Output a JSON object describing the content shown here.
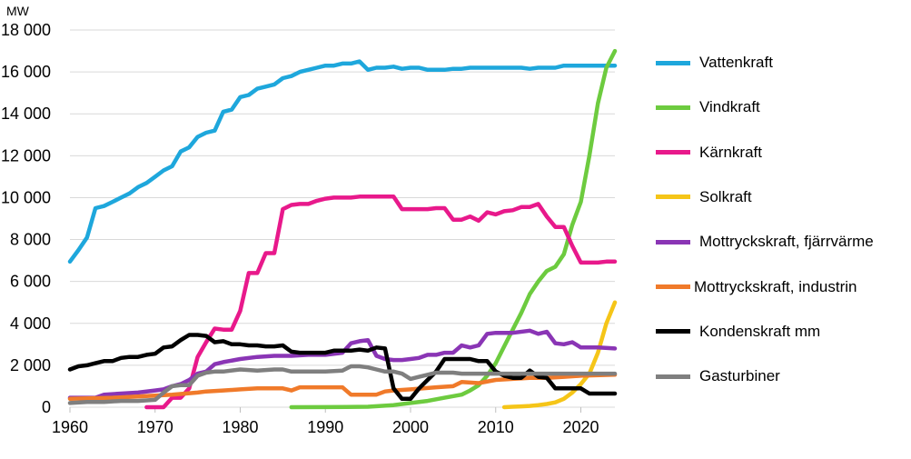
{
  "chart_data": {
    "type": "line",
    "unit_label": "MW",
    "xlim": [
      1960,
      2024
    ],
    "ylim": [
      0,
      18000
    ],
    "x_ticks": [
      1960,
      1970,
      1980,
      1990,
      2000,
      2010,
      2020
    ],
    "y_ticks": [
      0,
      2000,
      4000,
      6000,
      8000,
      10000,
      12000,
      14000,
      16000,
      18000
    ],
    "y_tick_labels": [
      "0",
      "2 000",
      "4 000",
      "6 000",
      "8 000",
      "10 000",
      "12 000",
      "14 000",
      "16 000",
      "18 000"
    ],
    "grid": "horizontal",
    "legend_position": "right",
    "series": [
      {
        "name": "Vattenkraft",
        "color": "#1ea7dc",
        "x": [
          1960,
          1961,
          1962,
          1963,
          1964,
          1965,
          1966,
          1967,
          1968,
          1969,
          1970,
          1971,
          1972,
          1973,
          1974,
          1975,
          1976,
          1977,
          1978,
          1979,
          1980,
          1981,
          1982,
          1983,
          1984,
          1985,
          1986,
          1987,
          1988,
          1989,
          1990,
          1991,
          1992,
          1993,
          1994,
          1995,
          1996,
          1997,
          1998,
          1999,
          2000,
          2001,
          2002,
          2003,
          2004,
          2005,
          2006,
          2007,
          2008,
          2009,
          2010,
          2011,
          2012,
          2013,
          2014,
          2015,
          2016,
          2017,
          2018,
          2019,
          2020,
          2021,
          2022,
          2023,
          2024
        ],
        "y": [
          6950,
          7500,
          8100,
          9500,
          9600,
          9800,
          10000,
          10200,
          10500,
          10700,
          11000,
          11300,
          11500,
          12200,
          12400,
          12900,
          13100,
          13200,
          14100,
          14200,
          14800,
          14900,
          15200,
          15300,
          15400,
          15700,
          15800,
          16000,
          16100,
          16200,
          16300,
          16300,
          16400,
          16400,
          16500,
          16100,
          16200,
          16200,
          16250,
          16150,
          16200,
          16200,
          16100,
          16100,
          16100,
          16150,
          16150,
          16200,
          16200,
          16200,
          16200,
          16200,
          16200,
          16200,
          16150,
          16200,
          16200,
          16200,
          16300,
          16300,
          16300,
          16300,
          16300,
          16300,
          16300
        ]
      },
      {
        "name": "Vindkraft",
        "color": "#6dcb3f",
        "x": [
          1986,
          1990,
          1995,
          1998,
          2000,
          2002,
          2004,
          2006,
          2007,
          2008,
          2009,
          2010,
          2011,
          2012,
          2013,
          2014,
          2015,
          2016,
          2017,
          2018,
          2019,
          2020,
          2021,
          2022,
          2023,
          2024
        ],
        "y": [
          0,
          5,
          20,
          100,
          200,
          300,
          450,
          600,
          800,
          1050,
          1500,
          2100,
          2900,
          3700,
          4500,
          5400,
          6000,
          6500,
          6700,
          7300,
          8700,
          9800,
          12000,
          14500,
          16200,
          17000
        ]
      },
      {
        "name": "Kärnkraft",
        "color": "#e8198b",
        "x": [
          1969,
          1970,
          1971,
          1972,
          1973,
          1974,
          1975,
          1976,
          1977,
          1978,
          1979,
          1980,
          1981,
          1982,
          1983,
          1984,
          1985,
          1986,
          1987,
          1988,
          1989,
          1990,
          1991,
          1992,
          1993,
          1994,
          1995,
          1996,
          1997,
          1998,
          1999,
          2000,
          2001,
          2002,
          2003,
          2004,
          2005,
          2006,
          2007,
          2008,
          2009,
          2010,
          2011,
          2012,
          2013,
          2014,
          2015,
          2016,
          2017,
          2018,
          2019,
          2020,
          2021,
          2022,
          2023,
          2024
        ],
        "y": [
          0,
          0,
          0,
          450,
          450,
          900,
          2400,
          3100,
          3750,
          3700,
          3700,
          4600,
          6400,
          6400,
          7350,
          7350,
          9450,
          9650,
          9700,
          9700,
          9850,
          9950,
          10000,
          10000,
          10000,
          10050,
          10050,
          10050,
          10050,
          10050,
          9450,
          9450,
          9450,
          9450,
          9500,
          9500,
          8950,
          8950,
          9100,
          8900,
          9300,
          9200,
          9350,
          9400,
          9550,
          9550,
          9700,
          9100,
          8600,
          8600,
          7700,
          6900,
          6900,
          6900,
          6950,
          6950
        ]
      },
      {
        "name": "Solkraft",
        "color": "#f5c518",
        "x": [
          2011,
          2012,
          2013,
          2014,
          2015,
          2016,
          2017,
          2018,
          2019,
          2020,
          2021,
          2022,
          2023,
          2024
        ],
        "y": [
          0,
          20,
          40,
          60,
          100,
          150,
          230,
          400,
          700,
          1100,
          1600,
          2600,
          4000,
          5000
        ]
      },
      {
        "name": "Mottryckskraft, fjärrvärme",
        "color": "#8a35b5",
        "x": [
          1960,
          1963,
          1964,
          1966,
          1968,
          1970,
          1971,
          1972,
          1973,
          1974,
          1975,
          1976,
          1977,
          1978,
          1980,
          1982,
          1984,
          1986,
          1988,
          1990,
          1992,
          1993,
          1994,
          1995,
          1996,
          1997,
          1998,
          1999,
          2000,
          2001,
          2002,
          2003,
          2004,
          2005,
          2006,
          2007,
          2008,
          2009,
          2010,
          2012,
          2014,
          2015,
          2016,
          2017,
          2018,
          2019,
          2020,
          2022,
          2024
        ],
        "y": [
          450,
          450,
          600,
          650,
          700,
          800,
          850,
          1000,
          1100,
          1300,
          1600,
          1700,
          2050,
          2150,
          2300,
          2400,
          2450,
          2450,
          2500,
          2500,
          2600,
          3050,
          3150,
          3200,
          2450,
          2300,
          2250,
          2250,
          2300,
          2350,
          2500,
          2500,
          2600,
          2600,
          2950,
          2850,
          2950,
          3500,
          3550,
          3550,
          3650,
          3500,
          3600,
          3050,
          3000,
          3100,
          2850,
          2850,
          2800
        ]
      },
      {
        "name": "Mottryckskraft, industrin",
        "color": "#f07a2a",
        "x": [
          1960,
          1965,
          1970,
          1972,
          1975,
          1976,
          1978,
          1980,
          1982,
          1985,
          1986,
          1987,
          1990,
          1992,
          1993,
          1995,
          1996,
          1997,
          1998,
          2000,
          2003,
          2005,
          2006,
          2008,
          2010,
          2012,
          2014,
          2016,
          2018,
          2020,
          2024
        ],
        "y": [
          400,
          450,
          550,
          600,
          700,
          750,
          800,
          850,
          900,
          900,
          800,
          950,
          950,
          950,
          600,
          600,
          600,
          750,
          800,
          850,
          950,
          1000,
          1200,
          1150,
          1300,
          1350,
          1400,
          1400,
          1450,
          1500,
          1550
        ]
      },
      {
        "name": "Kondenskraft mm",
        "color": "#000000",
        "x": [
          1960,
          1961,
          1962,
          1963,
          1964,
          1965,
          1966,
          1967,
          1968,
          1969,
          1970,
          1971,
          1972,
          1973,
          1974,
          1975,
          1976,
          1977,
          1978,
          1979,
          1980,
          1981,
          1982,
          1983,
          1984,
          1985,
          1986,
          1987,
          1988,
          1989,
          1990,
          1991,
          1992,
          1993,
          1994,
          1995,
          1996,
          1997,
          1998,
          1999,
          2000,
          2001,
          2002,
          2003,
          2004,
          2005,
          2006,
          2007,
          2008,
          2009,
          2010,
          2011,
          2012,
          2013,
          2014,
          2015,
          2016,
          2017,
          2018,
          2019,
          2020,
          2021,
          2022,
          2023,
          2024
        ],
        "y": [
          1800,
          1950,
          2000,
          2100,
          2200,
          2200,
          2350,
          2400,
          2400,
          2500,
          2550,
          2850,
          2900,
          3200,
          3450,
          3450,
          3400,
          3100,
          3150,
          3000,
          3000,
          2950,
          2950,
          2900,
          2900,
          2950,
          2650,
          2600,
          2600,
          2600,
          2600,
          2700,
          2700,
          2700,
          2750,
          2700,
          2850,
          2800,
          900,
          400,
          400,
          900,
          1300,
          1700,
          2300,
          2300,
          2300,
          2300,
          2200,
          2200,
          1700,
          1500,
          1400,
          1400,
          1750,
          1450,
          1400,
          900,
          900,
          900,
          900,
          650,
          650,
          650,
          650
        ]
      },
      {
        "name": "Gasturbiner",
        "color": "#7f7f7f",
        "x": [
          1960,
          1962,
          1964,
          1966,
          1968,
          1970,
          1971,
          1972,
          1973,
          1974,
          1975,
          1976,
          1977,
          1978,
          1980,
          1982,
          1984,
          1985,
          1986,
          1988,
          1990,
          1992,
          1993,
          1994,
          1995,
          1996,
          1997,
          1998,
          1999,
          2000,
          2001,
          2002,
          2003,
          2004,
          2005,
          2006,
          2008,
          2010,
          2012,
          2014,
          2016,
          2018,
          2020,
          2022,
          2024
        ],
        "y": [
          200,
          250,
          250,
          300,
          300,
          350,
          700,
          1000,
          1050,
          1050,
          1500,
          1650,
          1700,
          1700,
          1800,
          1750,
          1800,
          1800,
          1700,
          1700,
          1700,
          1750,
          1950,
          1950,
          1900,
          1800,
          1700,
          1700,
          1600,
          1350,
          1450,
          1550,
          1650,
          1650,
          1650,
          1600,
          1600,
          1600,
          1600,
          1600,
          1600,
          1600,
          1600,
          1600,
          1600
        ]
      }
    ]
  }
}
